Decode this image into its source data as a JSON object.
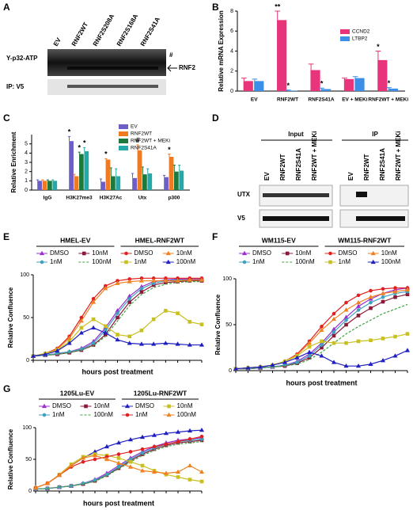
{
  "panel_labels": [
    "A",
    "B",
    "C",
    "D",
    "E",
    "F",
    "G"
  ],
  "blots": {
    "A": {
      "lanes": [
        "EV",
        "RNF2WT",
        "RNF2S208A",
        "RNF2S168A",
        "RNF2S41A"
      ],
      "rows": [
        "Y-p32-ATP",
        "IP: V5"
      ],
      "marks": [
        "#",
        "RNF2"
      ]
    },
    "D": {
      "groups": [
        "Input",
        "IP"
      ],
      "lanes": [
        "EV",
        "RNF2WT",
        "RNF2S41A",
        "RNF2WT + MEKi"
      ],
      "rows": [
        "UTX",
        "V5"
      ]
    }
  },
  "chart_data": [
    {
      "type": "bar",
      "ylabel": "Relative mRNA Expression",
      "categories": [
        "EV",
        "RNF2WT",
        "RNF2S41A",
        "EV + MEKi",
        "RNF2WT + MEKi"
      ],
      "ylim": [
        0,
        8
      ],
      "yticks": [
        0,
        2,
        4,
        6,
        8
      ],
      "legend": "upper right",
      "series": [
        {
          "name": "CCND2",
          "color": "#e8347a",
          "values": [
            1,
            7.1,
            2.1,
            1.2,
            3.1
          ],
          "errors": [
            0.3,
            0.9,
            0.6,
            0.1,
            0.9
          ],
          "significance": [
            null,
            "**",
            null,
            null,
            "*"
          ]
        },
        {
          "name": "LTBP2",
          "color": "#3b8fe6",
          "values": [
            1,
            0.05,
            0.2,
            1.3,
            0.25
          ],
          "errors": [
            0.2,
            0.05,
            0.1,
            0.15,
            0.1
          ],
          "significance": [
            null,
            "*",
            "*",
            null,
            "*"
          ]
        }
      ]
    },
    {
      "type": "bar",
      "ylabel": "Relative Enrichment",
      "categories": [
        "IgG",
        "H3K27me3",
        "H3K27Ac",
        "Utx",
        "p300"
      ],
      "ylim": [
        0,
        6
      ],
      "yticks": [
        0,
        1,
        2,
        3,
        4,
        5
      ],
      "legend": "upper right",
      "series": [
        {
          "name": "EV",
          "color": "#6b5fc7",
          "values": [
            1,
            5.3,
            0.9,
            1.3,
            1.4
          ],
          "errors": [
            0.1,
            0.5,
            0.3,
            0.5,
            0.2
          ],
          "significance": [
            null,
            "*",
            null,
            null,
            null
          ]
        },
        {
          "name": "RNF2WT",
          "color": "#f07a22",
          "values": [
            1,
            1.5,
            3.3,
            4.3,
            3.6
          ],
          "errors": [
            0.1,
            0.2,
            0.1,
            0.6,
            0.3
          ],
          "significance": [
            null,
            null,
            "*",
            "#",
            "*"
          ]
        },
        {
          "name": "RNF2WT + MEKi",
          "color": "#1e7a3c",
          "values": [
            1,
            3.9,
            1.5,
            1.7,
            2.0
          ],
          "errors": [
            0.1,
            0.2,
            0.9,
            0.8,
            0.7
          ],
          "significance": [
            null,
            "*",
            null,
            null,
            null
          ]
        },
        {
          "name": "RNF2S41A",
          "color": "#23a9a6",
          "values": [
            1,
            4.2,
            1.5,
            1.8,
            2.1
          ],
          "errors": [
            0.1,
            0.4,
            0.8,
            0.5,
            0.6
          ],
          "significance": [
            null,
            "*",
            null,
            null,
            null
          ]
        }
      ]
    },
    {
      "type": "line",
      "ylabel": "Relative Confluence",
      "xlabel": "hours post treatment",
      "x": [
        0,
        8,
        16,
        24,
        32,
        40,
        48,
        56,
        64,
        72,
        80,
        88,
        96,
        104,
        112
      ],
      "xlim": [
        0,
        112
      ],
      "ylim": [
        0,
        100
      ],
      "yticks": [
        0,
        50,
        100
      ],
      "groups": [
        {
          "name": "HMEL-EV",
          "series": [
            {
              "name": "DMSO",
              "color": "#9b30d0",
              "marker": "triangle",
              "values": [
                5,
                6,
                8,
                10,
                14,
                22,
                38,
                58,
                75,
                86,
                92,
                94,
                95,
                95,
                95
              ]
            },
            {
              "name": "10nM",
              "color": "#8b1a3a",
              "marker": "square",
              "values": [
                5,
                6,
                7,
                9,
                12,
                18,
                30,
                50,
                68,
                80,
                88,
                91,
                92,
                93,
                93
              ]
            },
            {
              "name": "1nM",
              "color": "#40a0c0",
              "marker": "circle",
              "values": [
                5,
                6,
                8,
                10,
                13,
                20,
                35,
                55,
                72,
                84,
                90,
                93,
                94,
                94,
                94
              ]
            },
            {
              "name": "100nM",
              "color": "#40a040",
              "marker": "none",
              "dashed": true,
              "values": [
                5,
                6,
                7,
                9,
                12,
                17,
                28,
                46,
                64,
                77,
                85,
                89,
                91,
                92,
                92
              ]
            }
          ]
        },
        {
          "name": "HMEL-RNF2WT",
          "series": [
            {
              "name": "DMSO",
              "color": "#e02020",
              "marker": "circle",
              "values": [
                5,
                8,
                14,
                28,
                50,
                72,
                87,
                93,
                95,
                96,
                96,
                96,
                96,
                96,
                96
              ]
            },
            {
              "name": "10nM",
              "color": "#f08020",
              "marker": "triangle",
              "values": [
                5,
                8,
                13,
                26,
                46,
                68,
                84,
                90,
                92,
                93,
                93,
                93,
                93,
                94,
                94
              ]
            },
            {
              "name": "1nM",
              "color": "#c8c020",
              "marker": "square",
              "values": [
                5,
                8,
                12,
                22,
                38,
                48,
                40,
                30,
                28,
                35,
                48,
                58,
                55,
                45,
                42
              ]
            },
            {
              "name": "100nM",
              "color": "#2020c0",
              "marker": "triangle",
              "values": [
                5,
                7,
                11,
                20,
                32,
                38,
                32,
                24,
                20,
                19,
                19,
                20,
                19,
                18,
                18
              ]
            }
          ]
        }
      ]
    },
    {
      "type": "line",
      "ylabel": "Relative Confluence",
      "xlabel": "hours post treatment",
      "x": [
        0,
        14,
        28,
        42,
        56,
        70,
        84,
        98,
        112,
        126,
        140,
        154,
        168,
        182,
        196
      ],
      "xlim": [
        0,
        196
      ],
      "ylim": [
        0,
        100
      ],
      "yticks": [
        0,
        50,
        100
      ],
      "groups": [
        {
          "name": "WM115-EV",
          "series": [
            {
              "name": "DMSO",
              "color": "#9b30d0",
              "marker": "triangle",
              "values": [
                2,
                2,
                3,
                4,
                6,
                10,
                18,
                30,
                45,
                58,
                70,
                78,
                84,
                88,
                90
              ]
            },
            {
              "name": "10nM",
              "color": "#8b1a3a",
              "marker": "square",
              "values": [
                2,
                2,
                3,
                4,
                5,
                8,
                14,
                25,
                38,
                50,
                60,
                68,
                75,
                80,
                83
              ]
            },
            {
              "name": "1nM",
              "color": "#40a0c0",
              "marker": "circle",
              "values": [
                2,
                2,
                3,
                4,
                6,
                9,
                16,
                28,
                42,
                55,
                66,
                74,
                80,
                84,
                86
              ]
            },
            {
              "name": "100nM",
              "color": "#40a040",
              "marker": "none",
              "dashed": true,
              "values": [
                2,
                2,
                3,
                4,
                5,
                7,
                12,
                20,
                30,
                40,
                48,
                55,
                62,
                67,
                72
              ]
            }
          ]
        },
        {
          "name": "WM115-RNF2WT",
          "series": [
            {
              "name": "DMSO",
              "color": "#e02020",
              "marker": "circle",
              "values": [
                2,
                3,
                4,
                6,
                10,
                18,
                32,
                48,
                62,
                74,
                82,
                87,
                89,
                90,
                90
              ]
            },
            {
              "name": "10nM",
              "color": "#f08020",
              "marker": "triangle",
              "values": [
                2,
                3,
                4,
                6,
                10,
                17,
                30,
                44,
                56,
                66,
                74,
                80,
                84,
                86,
                88
              ]
            },
            {
              "name": "1nM",
              "color": "#c8c020",
              "marker": "square",
              "values": [
                2,
                3,
                4,
                6,
                10,
                16,
                26,
                32,
                30,
                30,
                32,
                33,
                35,
                37,
                40
              ]
            },
            {
              "name": "100nM",
              "color": "#2020c0",
              "marker": "triangle",
              "values": [
                2,
                3,
                4,
                6,
                9,
                14,
                20,
                16,
                9,
                5,
                5,
                7,
                11,
                16,
                22
              ]
            }
          ]
        }
      ]
    },
    {
      "type": "line",
      "ylabel": "Relative Confluence",
      "xlabel": "hours post treatment",
      "x": [
        0,
        14,
        28,
        42,
        56,
        70,
        84,
        98,
        112,
        126,
        140,
        154,
        168,
        182,
        196
      ],
      "xlim": [
        0,
        196
      ],
      "ylim": [
        0,
        100
      ],
      "yticks": [
        0,
        50,
        100
      ],
      "groups": [
        {
          "name": "1205Lu-EV",
          "series": [
            {
              "name": "DMSO",
              "color": "#9b30d0",
              "marker": "triangle",
              "values": [
                3,
                4,
                6,
                8,
                12,
                18,
                28,
                40,
                52,
                62,
                70,
                76,
                80,
                82,
                84
              ]
            },
            {
              "name": "10nM",
              "color": "#8b1a3a",
              "marker": "square",
              "values": [
                3,
                4,
                6,
                8,
                11,
                16,
                25,
                36,
                48,
                58,
                66,
                72,
                76,
                78,
                80
              ]
            },
            {
              "name": "1nM",
              "color": "#40a0c0",
              "marker": "circle",
              "values": [
                3,
                4,
                6,
                8,
                12,
                17,
                26,
                38,
                50,
                60,
                68,
                74,
                78,
                80,
                82
              ]
            },
            {
              "name": "100nM",
              "color": "#40a040",
              "marker": "none",
              "dashed": true,
              "values": [
                3,
                4,
                6,
                8,
                11,
                15,
                24,
                35,
                46,
                56,
                64,
                70,
                74,
                76,
                78
              ]
            }
          ]
        },
        {
          "name": "1205Lu-RNF2WT",
          "series": [
            {
              "name": "DMSO",
              "color": "#2020c0",
              "marker": "triangle",
              "values": [
                5,
                12,
                25,
                40,
                52,
                62,
                70,
                76,
                81,
                85,
                88,
                91,
                93,
                95,
                96
              ]
            },
            {
              "name": "10nM",
              "color": "#c8c020",
              "marker": "square",
              "values": [
                5,
                12,
                26,
                42,
                54,
                58,
                56,
                52,
                46,
                40,
                32,
                26,
                22,
                18,
                15
              ]
            },
            {
              "name": "1nM",
              "color": "#e02020",
              "marker": "circle",
              "values": [
                5,
                12,
                25,
                38,
                46,
                50,
                54,
                58,
                62,
                66,
                70,
                74,
                78,
                82,
                86
              ]
            },
            {
              "name": "100nM",
              "color": "#f08020",
              "marker": "triangle",
              "values": [
                5,
                12,
                25,
                40,
                52,
                56,
                50,
                44,
                38,
                32,
                30,
                28,
                30,
                40,
                30
              ]
            }
          ]
        }
      ]
    }
  ]
}
